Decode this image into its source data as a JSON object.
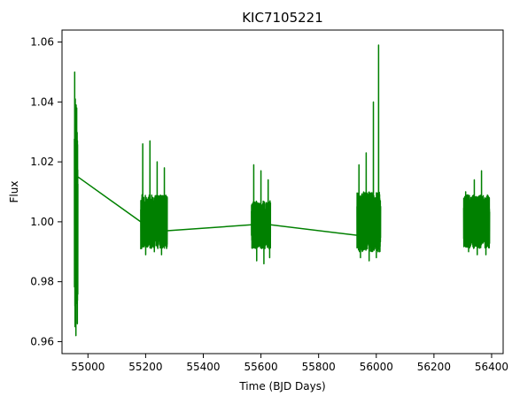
{
  "chart_data": {
    "type": "line",
    "title": "KIC7105221",
    "xlabel": "Time (BJD Days)",
    "ylabel": "Flux",
    "xlim": [
      54910,
      56440
    ],
    "ylim": [
      0.956,
      1.064
    ],
    "x_ticks": [
      55000,
      55200,
      55400,
      55600,
      55800,
      56000,
      56200,
      56400
    ],
    "y_ticks": [
      0.96,
      0.98,
      1.0,
      1.02,
      1.04,
      1.06
    ],
    "y_tick_labels": [
      "0.96",
      "0.98",
      "1.00",
      "1.02",
      "1.04",
      "1.06"
    ],
    "grid": false,
    "legend": null,
    "series": [
      {
        "color": "#008000",
        "segments": [
          {
            "x_start": 54953,
            "x_end": 54965,
            "baseline": 1.0,
            "typical_half_range": 0.03,
            "peaks": [
              {
                "x": 54954,
                "y": 1.05
              },
              {
                "x": 54956,
                "y": 1.041
              },
              {
                "x": 54959,
                "y": 1.039
              },
              {
                "x": 54961,
                "y": 1.038
              }
            ],
            "troughs": [
              {
                "x": 54955,
                "y": 0.965
              },
              {
                "x": 54958,
                "y": 0.962
              },
              {
                "x": 54963,
                "y": 0.966
              }
            ]
          },
          {
            "x_start": 55183,
            "x_end": 55275,
            "baseline": 1.0,
            "typical_half_range": 0.009,
            "peaks": [
              {
                "x": 55190,
                "y": 1.026
              },
              {
                "x": 55215,
                "y": 1.027
              },
              {
                "x": 55240,
                "y": 1.02
              },
              {
                "x": 55265,
                "y": 1.018
              }
            ],
            "troughs": [
              {
                "x": 55200,
                "y": 0.989
              },
              {
                "x": 55230,
                "y": 0.99
              },
              {
                "x": 55255,
                "y": 0.989
              }
            ]
          },
          {
            "x_start": 55567,
            "x_end": 55633,
            "baseline": 0.999,
            "typical_half_range": 0.008,
            "peaks": [
              {
                "x": 55575,
                "y": 1.019
              },
              {
                "x": 55600,
                "y": 1.017
              },
              {
                "x": 55625,
                "y": 1.014
              }
            ],
            "troughs": [
              {
                "x": 55585,
                "y": 0.987
              },
              {
                "x": 55610,
                "y": 0.986
              },
              {
                "x": 55630,
                "y": 0.988
              }
            ]
          },
          {
            "x_start": 55933,
            "x_end": 56015,
            "baseline": 1.0,
            "typical_half_range": 0.01,
            "peaks": [
              {
                "x": 55940,
                "y": 1.019
              },
              {
                "x": 55965,
                "y": 1.023
              },
              {
                "x": 55990,
                "y": 1.04
              },
              {
                "x": 56008,
                "y": 1.059
              }
            ],
            "troughs": [
              {
                "x": 55945,
                "y": 0.988
              },
              {
                "x": 55975,
                "y": 0.987
              },
              {
                "x": 56000,
                "y": 0.988
              }
            ]
          },
          {
            "x_start": 56303,
            "x_end": 56393,
            "baseline": 1.0,
            "typical_half_range": 0.009,
            "peaks": [
              {
                "x": 56310,
                "y": 1.01
              },
              {
                "x": 56340,
                "y": 1.014
              },
              {
                "x": 56365,
                "y": 1.017
              }
            ],
            "troughs": [
              {
                "x": 56320,
                "y": 0.99
              },
              {
                "x": 56350,
                "y": 0.989
              },
              {
                "x": 56380,
                "y": 0.989
              }
            ]
          }
        ],
        "connectors": [
          {
            "from": [
              54965,
              1.015
            ],
            "to": [
              55183,
              1.0
            ]
          },
          {
            "from": [
              55275,
              0.997
            ],
            "to": [
              55567,
              0.999
            ]
          },
          {
            "from": [
              55633,
              0.999
            ],
            "to": [
              55933,
              0.9955
            ]
          }
        ]
      }
    ]
  }
}
